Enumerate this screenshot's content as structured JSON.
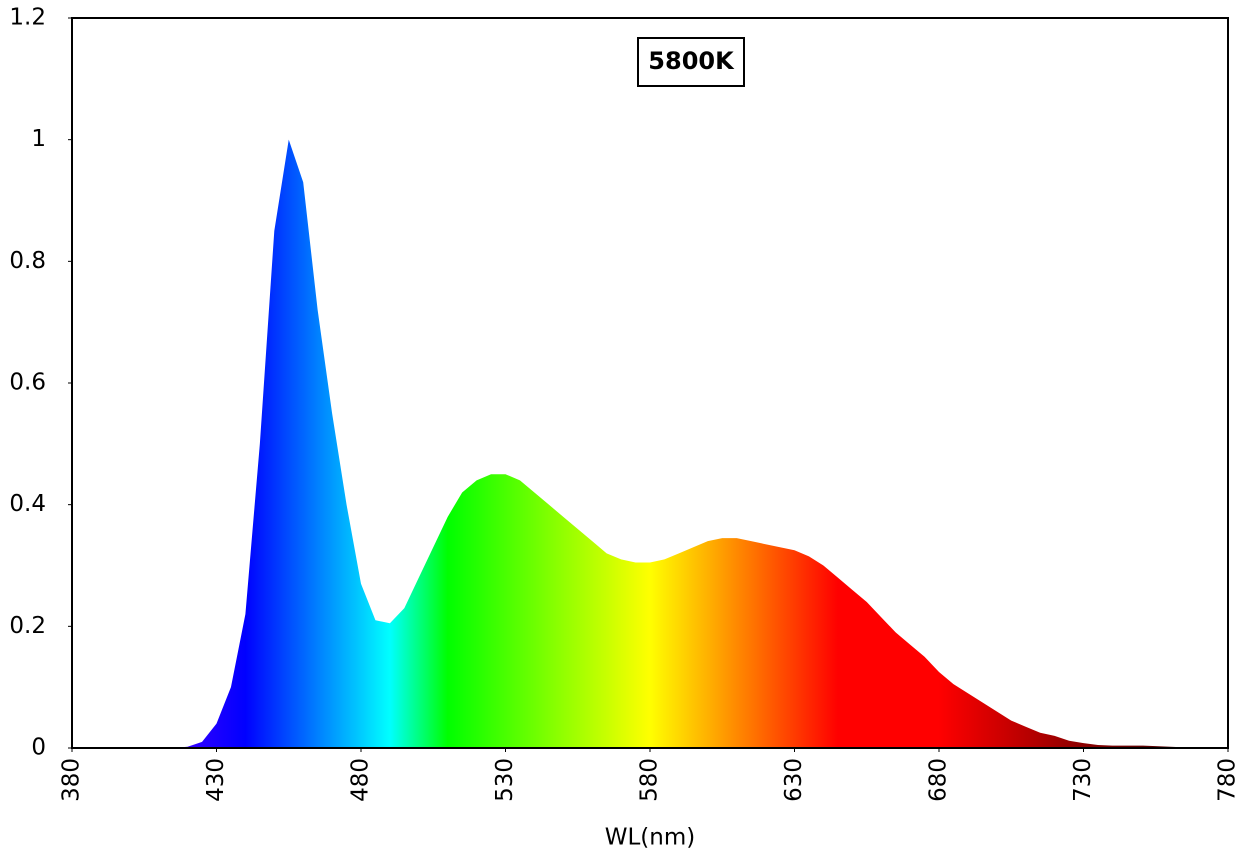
{
  "chart_data": {
    "type": "area",
    "title": "5800K",
    "x_label": "WL(nm)",
    "x": [
      380,
      385,
      390,
      395,
      400,
      405,
      410,
      415,
      420,
      425,
      430,
      435,
      440,
      445,
      450,
      455,
      460,
      465,
      470,
      475,
      480,
      485,
      490,
      495,
      500,
      505,
      510,
      515,
      520,
      525,
      530,
      535,
      540,
      545,
      550,
      555,
      560,
      565,
      570,
      575,
      580,
      585,
      590,
      595,
      600,
      605,
      610,
      615,
      620,
      625,
      630,
      635,
      640,
      645,
      650,
      655,
      660,
      665,
      670,
      675,
      680,
      685,
      690,
      695,
      700,
      705,
      710,
      715,
      720,
      725,
      730,
      735,
      740,
      745,
      750,
      755,
      760,
      765,
      770,
      775,
      780
    ],
    "values": [
      0,
      0,
      0,
      0,
      0,
      0,
      0,
      0,
      0.002,
      0.01,
      0.04,
      0.1,
      0.22,
      0.5,
      0.85,
      1.0,
      0.93,
      0.72,
      0.55,
      0.4,
      0.27,
      0.21,
      0.205,
      0.23,
      0.28,
      0.33,
      0.38,
      0.42,
      0.44,
      0.45,
      0.45,
      0.44,
      0.42,
      0.4,
      0.38,
      0.36,
      0.34,
      0.32,
      0.31,
      0.305,
      0.305,
      0.31,
      0.32,
      0.33,
      0.34,
      0.345,
      0.345,
      0.34,
      0.335,
      0.33,
      0.325,
      0.315,
      0.3,
      0.28,
      0.26,
      0.24,
      0.215,
      0.19,
      0.17,
      0.15,
      0.125,
      0.105,
      0.09,
      0.075,
      0.06,
      0.045,
      0.035,
      0.025,
      0.02,
      0.012,
      0.008,
      0.005,
      0.004,
      0.004,
      0.004,
      0.003,
      0.002,
      0.001,
      0,
      0,
      0
    ],
    "xlim": [
      380,
      780
    ],
    "xticks": [
      380,
      430,
      480,
      530,
      580,
      630,
      680,
      730,
      780
    ],
    "ylim": [
      0,
      1.2
    ],
    "yticks": [
      0,
      0.2,
      0.4,
      0.6,
      0.8,
      1,
      1.2
    ],
    "grid": false
  }
}
